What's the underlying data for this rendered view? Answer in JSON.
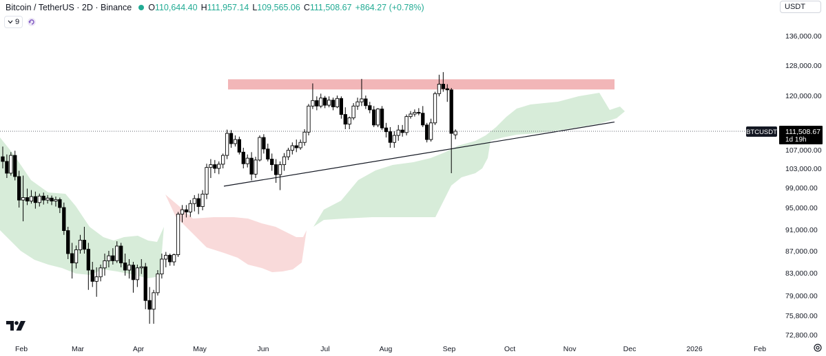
{
  "header": {
    "symbol_title": "Bitcoin / TetherUS · 2D · Binance",
    "ohlc": [
      {
        "label": "O",
        "value": "110,644.40"
      },
      {
        "label": "H",
        "value": "111,957.14"
      },
      {
        "label": "L",
        "value": "109,565.06"
      },
      {
        "label": "C",
        "value": "111,508.67"
      },
      {
        "label": "",
        "value": "+864.27 (+0.78%)"
      }
    ],
    "indicator_count": "9",
    "currency": "USDT"
  },
  "price_axis": {
    "labels": [
      "136,000.00",
      "128,000.00",
      "120,000.00",
      "107,000.00",
      "103,000.00",
      "99,000.00",
      "95,000.00",
      "91,000.00",
      "87,000.00",
      "83,000.00",
      "79,000.00",
      "75,800.00",
      "72,800.00"
    ],
    "current_symbol": "BTCUSDT",
    "current_price": "111,508.67",
    "countdown": "1d 19h"
  },
  "time_axis": {
    "labels": [
      "Feb",
      "Mar",
      "Apr",
      "May",
      "Jun",
      "Jul",
      "Aug",
      "Sep",
      "Oct",
      "Nov",
      "Dec",
      "2026",
      "Feb"
    ]
  },
  "colors": {
    "up": "#ffffff",
    "down": "#000000",
    "cloud_bull": "#d7ecd9",
    "cloud_bear": "#f9dada",
    "resistance_zone": "#f2b6b8",
    "accent_green": "#22ab94"
  },
  "chart_data": {
    "type": "candlestick",
    "symbol": "BTCUSDT",
    "timeframe": "2D",
    "ylim": [
      72800,
      140000
    ],
    "last_close": 111508.67,
    "candles": [
      {
        "o": 105500,
        "h": 107800,
        "l": 103000,
        "c": 104500
      },
      {
        "o": 104500,
        "h": 106000,
        "l": 101000,
        "c": 102000
      },
      {
        "o": 102000,
        "h": 106500,
        "l": 101500,
        "c": 105800
      },
      {
        "o": 105800,
        "h": 106800,
        "l": 100500,
        "c": 101300
      },
      {
        "o": 101300,
        "h": 102500,
        "l": 95000,
        "c": 96500
      },
      {
        "o": 96500,
        "h": 101500,
        "l": 92500,
        "c": 97000
      },
      {
        "o": 97000,
        "h": 98800,
        "l": 95500,
        "c": 96300
      },
      {
        "o": 96300,
        "h": 98500,
        "l": 95800,
        "c": 97200
      },
      {
        "o": 97200,
        "h": 98200,
        "l": 94800,
        "c": 96000
      },
      {
        "o": 96000,
        "h": 97800,
        "l": 95200,
        "c": 97300
      },
      {
        "o": 97300,
        "h": 98000,
        "l": 95600,
        "c": 96500
      },
      {
        "o": 96500,
        "h": 97500,
        "l": 95800,
        "c": 96900
      },
      {
        "o": 96900,
        "h": 97400,
        "l": 95500,
        "c": 96300
      },
      {
        "o": 96300,
        "h": 97200,
        "l": 95200,
        "c": 96600
      },
      {
        "o": 96600,
        "h": 97000,
        "l": 94000,
        "c": 95000
      },
      {
        "o": 95000,
        "h": 96000,
        "l": 90000,
        "c": 90800
      },
      {
        "o": 90800,
        "h": 91500,
        "l": 85500,
        "c": 86500
      },
      {
        "o": 86500,
        "h": 88500,
        "l": 82000,
        "c": 84800
      },
      {
        "o": 84800,
        "h": 88000,
        "l": 83800,
        "c": 87200
      },
      {
        "o": 87200,
        "h": 90000,
        "l": 86500,
        "c": 89000
      },
      {
        "o": 89000,
        "h": 91500,
        "l": 86500,
        "c": 87300
      },
      {
        "o": 87300,
        "h": 88500,
        "l": 80000,
        "c": 83500
      },
      {
        "o": 83500,
        "h": 85000,
        "l": 80500,
        "c": 81500
      },
      {
        "o": 81500,
        "h": 84000,
        "l": 78800,
        "c": 82300
      },
      {
        "o": 82300,
        "h": 84500,
        "l": 81500,
        "c": 83900
      },
      {
        "o": 83900,
        "h": 86500,
        "l": 82500,
        "c": 85200
      },
      {
        "o": 85200,
        "h": 87000,
        "l": 84000,
        "c": 86100
      },
      {
        "o": 86100,
        "h": 87500,
        "l": 84500,
        "c": 85200
      },
      {
        "o": 85200,
        "h": 88800,
        "l": 84800,
        "c": 87900
      },
      {
        "o": 87900,
        "h": 88500,
        "l": 84000,
        "c": 84800
      },
      {
        "o": 84800,
        "h": 86500,
        "l": 82500,
        "c": 83500
      },
      {
        "o": 83500,
        "h": 85500,
        "l": 82000,
        "c": 84400
      },
      {
        "o": 84400,
        "h": 85000,
        "l": 79500,
        "c": 81800
      },
      {
        "o": 81800,
        "h": 84500,
        "l": 80500,
        "c": 83900
      },
      {
        "o": 83900,
        "h": 85500,
        "l": 82800,
        "c": 84100
      },
      {
        "o": 84100,
        "h": 84800,
        "l": 76800,
        "c": 78200
      },
      {
        "o": 78200,
        "h": 80500,
        "l": 74500,
        "c": 76800
      },
      {
        "o": 76800,
        "h": 80000,
        "l": 74500,
        "c": 79500
      },
      {
        "o": 79500,
        "h": 83500,
        "l": 79000,
        "c": 82800
      },
      {
        "o": 82800,
        "h": 86500,
        "l": 82000,
        "c": 85500
      },
      {
        "o": 85500,
        "h": 86800,
        "l": 84000,
        "c": 86200
      },
      {
        "o": 86200,
        "h": 86500,
        "l": 84300,
        "c": 85000
      },
      {
        "o": 85000,
        "h": 86500,
        "l": 84300,
        "c": 86300
      },
      {
        "o": 86300,
        "h": 94200,
        "l": 85900,
        "c": 93800
      },
      {
        "o": 93800,
        "h": 95500,
        "l": 92300,
        "c": 94600
      },
      {
        "o": 94600,
        "h": 95500,
        "l": 93200,
        "c": 94200
      },
      {
        "o": 94200,
        "h": 96500,
        "l": 93300,
        "c": 95800
      },
      {
        "o": 95800,
        "h": 97500,
        "l": 94300,
        "c": 96800
      },
      {
        "o": 96800,
        "h": 97800,
        "l": 93800,
        "c": 95200
      },
      {
        "o": 95200,
        "h": 98500,
        "l": 94500,
        "c": 97700
      },
      {
        "o": 97700,
        "h": 104000,
        "l": 96700,
        "c": 103200
      },
      {
        "o": 103200,
        "h": 105000,
        "l": 101000,
        "c": 103800
      },
      {
        "o": 103800,
        "h": 104800,
        "l": 102000,
        "c": 103000
      },
      {
        "o": 103000,
        "h": 104500,
        "l": 101800,
        "c": 103900
      },
      {
        "o": 103900,
        "h": 106200,
        "l": 103000,
        "c": 105800
      },
      {
        "o": 105800,
        "h": 111900,
        "l": 105000,
        "c": 111000
      },
      {
        "o": 111000,
        "h": 111800,
        "l": 107500,
        "c": 108500
      },
      {
        "o": 108500,
        "h": 110500,
        "l": 107800,
        "c": 109500
      },
      {
        "o": 109500,
        "h": 110200,
        "l": 106000,
        "c": 106500
      },
      {
        "o": 106500,
        "h": 107500,
        "l": 103000,
        "c": 104000
      },
      {
        "o": 104000,
        "h": 106000,
        "l": 103200,
        "c": 105200
      },
      {
        "o": 105200,
        "h": 106500,
        "l": 100500,
        "c": 101800
      },
      {
        "o": 101800,
        "h": 105500,
        "l": 101000,
        "c": 104800
      },
      {
        "o": 104800,
        "h": 110500,
        "l": 104500,
        "c": 110000
      },
      {
        "o": 110000,
        "h": 110800,
        "l": 106200,
        "c": 107200
      },
      {
        "o": 107200,
        "h": 108500,
        "l": 104500,
        "c": 105000
      },
      {
        "o": 105000,
        "h": 106200,
        "l": 102500,
        "c": 103800
      },
      {
        "o": 103800,
        "h": 105000,
        "l": 100000,
        "c": 101700
      },
      {
        "o": 101700,
        "h": 104500,
        "l": 98500,
        "c": 103800
      },
      {
        "o": 103800,
        "h": 106300,
        "l": 102500,
        "c": 105500
      },
      {
        "o": 105500,
        "h": 107500,
        "l": 104800,
        "c": 106900
      },
      {
        "o": 106900,
        "h": 108800,
        "l": 106000,
        "c": 108000
      },
      {
        "o": 108000,
        "h": 109500,
        "l": 106500,
        "c": 107500
      },
      {
        "o": 107500,
        "h": 109500,
        "l": 107000,
        "c": 108800
      },
      {
        "o": 108800,
        "h": 112000,
        "l": 108000,
        "c": 111300
      },
      {
        "o": 111300,
        "h": 118000,
        "l": 110500,
        "c": 117500
      },
      {
        "o": 117500,
        "h": 123200,
        "l": 116800,
        "c": 118800
      },
      {
        "o": 118800,
        "h": 119800,
        "l": 116500,
        "c": 117500
      },
      {
        "o": 117500,
        "h": 120500,
        "l": 117000,
        "c": 119400
      },
      {
        "o": 119400,
        "h": 119900,
        "l": 117000,
        "c": 117700
      },
      {
        "o": 117700,
        "h": 119800,
        "l": 117200,
        "c": 118900
      },
      {
        "o": 118900,
        "h": 119500,
        "l": 116500,
        "c": 117300
      },
      {
        "o": 117300,
        "h": 120000,
        "l": 117000,
        "c": 119300
      },
      {
        "o": 119300,
        "h": 119800,
        "l": 114500,
        "c": 115500
      },
      {
        "o": 115500,
        "h": 117200,
        "l": 112000,
        "c": 113200
      },
      {
        "o": 113200,
        "h": 115000,
        "l": 112000,
        "c": 114700
      },
      {
        "o": 114700,
        "h": 118200,
        "l": 114200,
        "c": 117500
      },
      {
        "o": 117500,
        "h": 119500,
        "l": 116600,
        "c": 118500
      },
      {
        "o": 118500,
        "h": 124400,
        "l": 117500,
        "c": 119200
      },
      {
        "o": 119200,
        "h": 120000,
        "l": 116800,
        "c": 117600
      },
      {
        "o": 117600,
        "h": 118500,
        "l": 115800,
        "c": 116600
      },
      {
        "o": 116600,
        "h": 117500,
        "l": 112500,
        "c": 113000
      },
      {
        "o": 113000,
        "h": 117000,
        "l": 112500,
        "c": 116800
      },
      {
        "o": 116800,
        "h": 117500,
        "l": 111800,
        "c": 112300
      },
      {
        "o": 112300,
        "h": 113500,
        "l": 110000,
        "c": 111400
      },
      {
        "o": 111400,
        "h": 112500,
        "l": 107500,
        "c": 108800
      },
      {
        "o": 108800,
        "h": 111500,
        "l": 107500,
        "c": 110500
      },
      {
        "o": 110500,
        "h": 113000,
        "l": 109200,
        "c": 111800
      },
      {
        "o": 111800,
        "h": 113000,
        "l": 110200,
        "c": 111200
      },
      {
        "o": 111200,
        "h": 115500,
        "l": 110500,
        "c": 115000
      },
      {
        "o": 115000,
        "h": 116300,
        "l": 114500,
        "c": 115600
      },
      {
        "o": 115600,
        "h": 116700,
        "l": 115000,
        "c": 116000
      },
      {
        "o": 116000,
        "h": 117000,
        "l": 115300,
        "c": 115800
      },
      {
        "o": 115800,
        "h": 117500,
        "l": 112500,
        "c": 113000
      },
      {
        "o": 113000,
        "h": 113500,
        "l": 108800,
        "c": 109500
      },
      {
        "o": 109500,
        "h": 114500,
        "l": 109000,
        "c": 113500
      },
      {
        "o": 113500,
        "h": 121000,
        "l": 113000,
        "c": 120500
      },
      {
        "o": 120500,
        "h": 125500,
        "l": 119800,
        "c": 123000
      },
      {
        "o": 123000,
        "h": 126200,
        "l": 121000,
        "c": 121800
      },
      {
        "o": 121800,
        "h": 123000,
        "l": 118500,
        "c": 121500
      },
      {
        "o": 121500,
        "h": 122000,
        "l": 102000,
        "c": 111000
      },
      {
        "o": 110644.4,
        "h": 111957.14,
        "l": 109565.06,
        "c": 111508.67
      }
    ],
    "resistance_zone": {
      "low": 121600,
      "high": 124300
    },
    "ascending_trendline": {
      "start_price": 99300,
      "end_price": 113700
    },
    "ichimoku_cloud": {
      "description": "Kumo cloud: green (bullish) and red (bearish) regions"
    },
    "xlabel": "",
    "ylabel": ""
  }
}
